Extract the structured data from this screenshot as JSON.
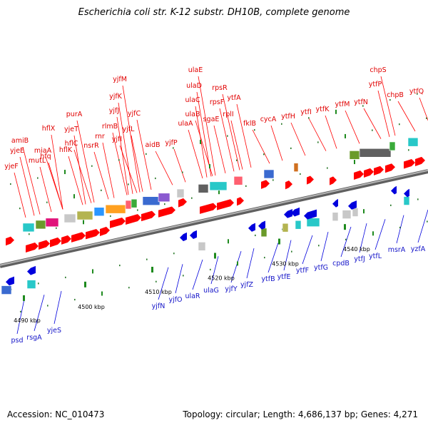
{
  "header": {
    "title": "Escherichia coli str. K-12 substr. DH10B, complete genome"
  },
  "footer": {
    "accession": "Accession: NC_010473",
    "summary": "Topology: circular; Length: 4,686,137 bp; Genes: 4,271"
  },
  "genome_map": {
    "ruler_ticks": [
      "4490 kbp",
      "4500 kbp",
      "4510 kbp",
      "4520 kbp",
      "4530 kbp",
      "4540 kbp"
    ],
    "forward_gene_labels": [
      "yjeF",
      "yjeE",
      "amiB",
      "mutL",
      "hfq",
      "miaA",
      "hflX",
      "hflK",
      "hflC",
      "yjeT",
      "nsrR",
      "purA",
      "rnr",
      "rlmB",
      "yjfI",
      "yjfJ",
      "yjfK",
      "yjfM",
      "yjfL",
      "yjfC",
      "aidB",
      "yjfP",
      "ulaA",
      "ulaB",
      "ulaC",
      "ulaD",
      "ulaE",
      "sgaE",
      "rpsF",
      "rpsR",
      "rplI",
      "ytfA",
      "fklB",
      "cycA",
      "ytfH",
      "ytfI",
      "ytfK",
      "ytfM",
      "ytfN",
      "ytfP",
      "chpS",
      "chpB",
      "ytfQ"
    ],
    "reverse_gene_labels": [
      "psd",
      "rsgA",
      "yjeS",
      "yjfN",
      "yjfO",
      "ulaR",
      "ulaG",
      "yjfY",
      "yjfZ",
      "ytfB",
      "ytfE",
      "ytfF",
      "ytfG",
      "cpdB",
      "ytfJ",
      "ytfL",
      "msrA",
      "yzfA"
    ],
    "colors": {
      "forward_gene": "#ff0000",
      "reverse_gene": "#0000dd",
      "axis": "#8a8a8a"
    }
  }
}
